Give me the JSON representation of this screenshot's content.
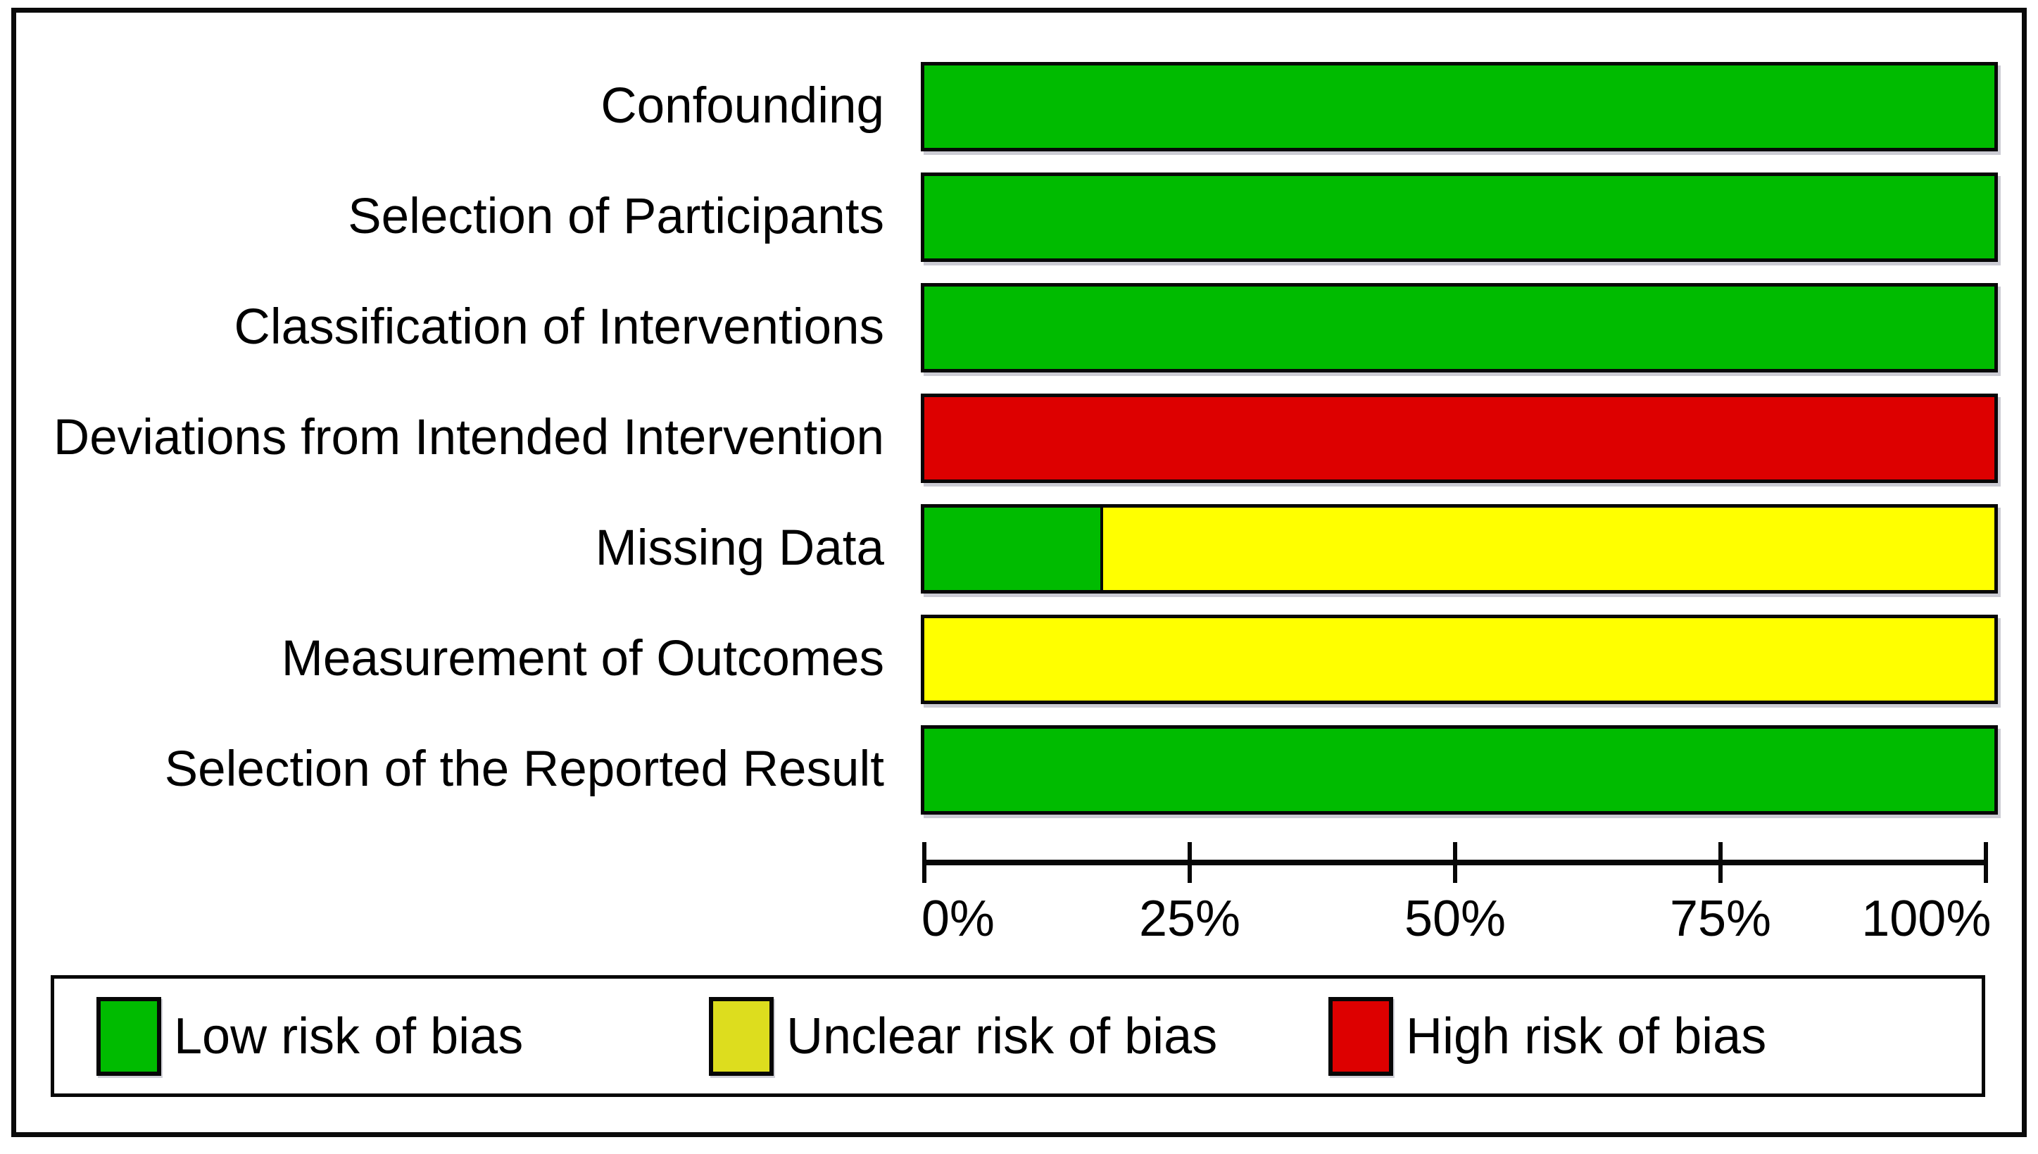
{
  "figure": {
    "background_color": "#ffffff",
    "frame_color": "#0a0a0a"
  },
  "chart_data": {
    "type": "bar",
    "orientation": "horizontal",
    "stacked": true,
    "title": "",
    "xlabel": "",
    "ylabel": "",
    "grid": false,
    "categories": [
      "Confounding",
      "Selection of Participants",
      "Classification of Interventions",
      "Deviations from Intended Intervention",
      "Missing Data",
      "Measurement of Outcomes",
      "Selection of the Reported Result"
    ],
    "series": [
      {
        "name": "Low risk of bias",
        "color": "#00bb00",
        "legend_swatch_color": "#00bb00",
        "values": [
          100,
          100,
          100,
          0,
          16.7,
          0,
          100
        ]
      },
      {
        "name": "Unclear risk of bias",
        "color": "#ffff00",
        "legend_swatch_color": "#dddd1e",
        "values": [
          0,
          0,
          0,
          0,
          83.3,
          100,
          0
        ]
      },
      {
        "name": "High risk of bias",
        "color": "#dd0000",
        "legend_swatch_color": "#dd0000",
        "values": [
          0,
          0,
          0,
          100,
          0,
          0,
          0
        ]
      }
    ],
    "x_axis": {
      "range": [
        0,
        100
      ],
      "tick_values": [
        0,
        25,
        50,
        75,
        100
      ],
      "ticks": [
        "0%",
        "25%",
        "50%",
        "75%",
        "100%"
      ]
    },
    "legend": {
      "position": "bottom",
      "entries": [
        "Low risk of bias",
        "Unclear risk of bias",
        "High risk of bias"
      ]
    }
  }
}
